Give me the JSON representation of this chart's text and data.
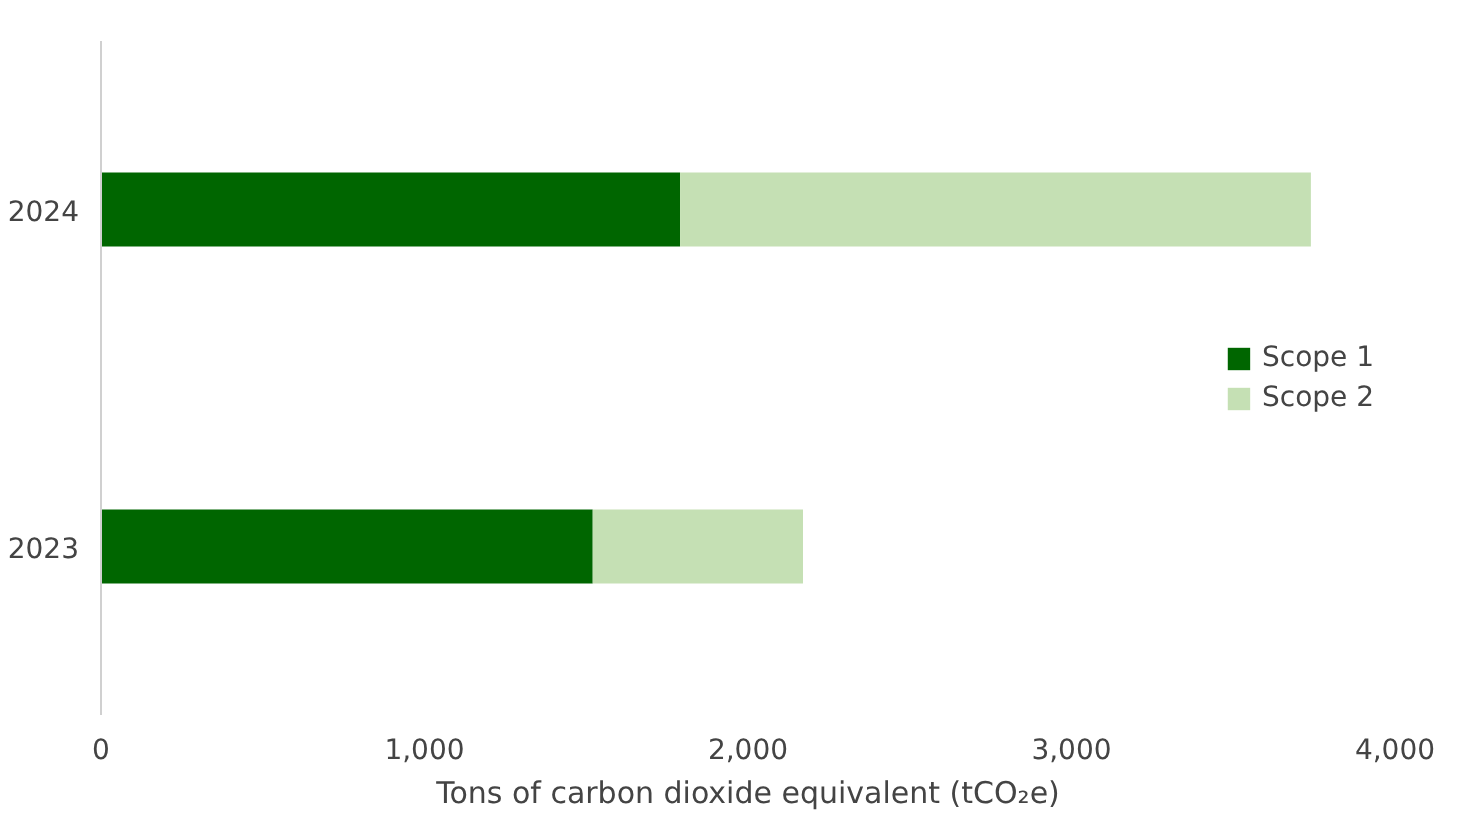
{
  "chart_data": {
    "type": "bar",
    "orientation": "horizontal",
    "stacked": true,
    "categories": [
      "2024",
      "2023"
    ],
    "series": [
      {
        "name": "Scope 1",
        "color": "#006600",
        "values": [
          1790,
          1520
        ]
      },
      {
        "name": "Scope 2",
        "color": "#c5e0b4",
        "values": [
          1950,
          650
        ]
      }
    ],
    "xlabel": "Tons of carbon dioxide equivalent (tCO₂e)",
    "xlim": [
      0,
      4000
    ],
    "xticks": [
      {
        "value": 0,
        "label": "0"
      },
      {
        "value": 1000,
        "label": "1,000"
      },
      {
        "value": 2000,
        "label": "2,000"
      },
      {
        "value": 3000,
        "label": "3,000"
      },
      {
        "value": 4000,
        "label": "4,000"
      }
    ],
    "grid": false,
    "legend": "right"
  }
}
